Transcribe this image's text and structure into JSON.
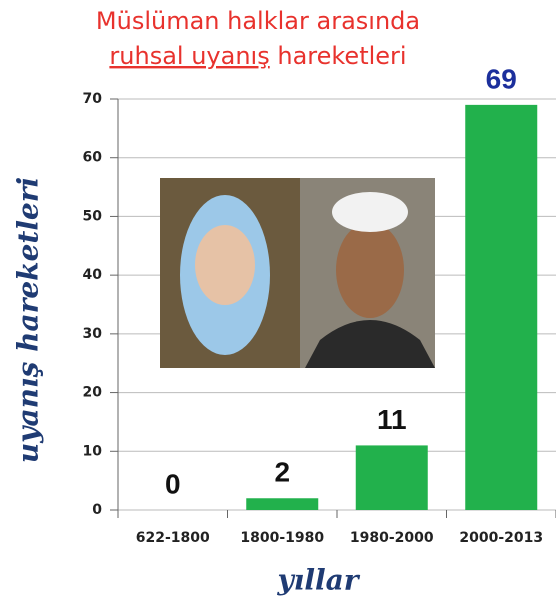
{
  "chart_data": {
    "type": "bar",
    "title_lines": [
      "Müslüman halklar arasında",
      "ruhsal uyanış",
      "hareketleri"
    ],
    "y_label": "uyanış hareketleri",
    "x_label": "yıllar",
    "categories": [
      "622-1800",
      "1800-1980",
      "1980-2000",
      "2000-2013"
    ],
    "values": [
      0,
      2,
      11,
      69
    ],
    "color": "#22b14c",
    "label_colors": [
      "#111111",
      "#111111",
      "#111111",
      "#1c2f9c"
    ],
    "ylim": [
      0,
      70
    ],
    "yticks": [
      0,
      10,
      20,
      30,
      40,
      50,
      60,
      70
    ],
    "grid": true
  }
}
